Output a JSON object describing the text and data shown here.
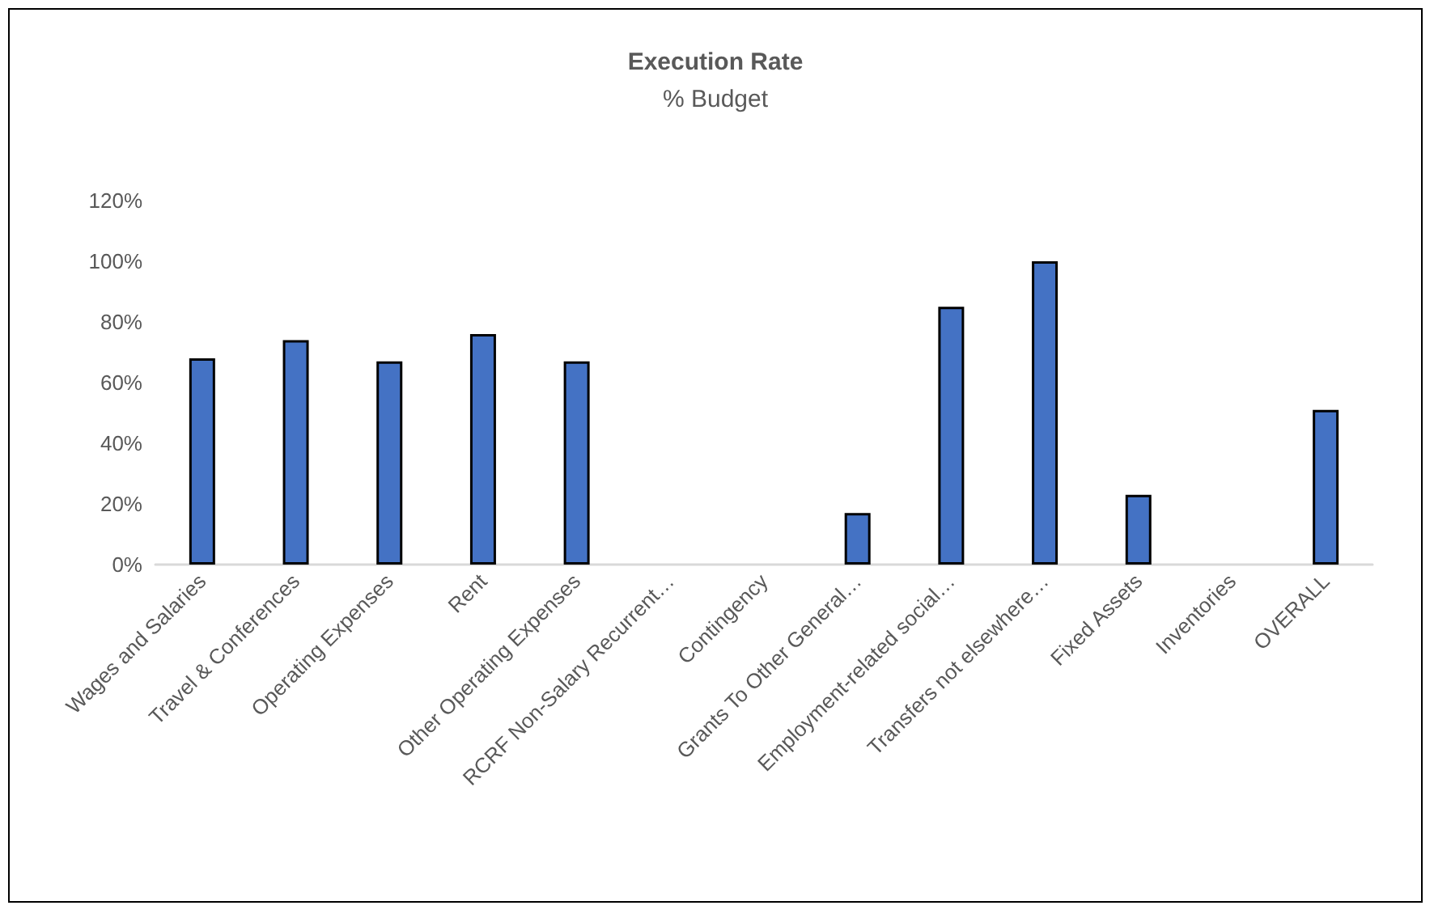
{
  "chart_data": {
    "type": "bar",
    "title": "Execution Rate",
    "subtitle": "% Budget",
    "categories": [
      "Wages and Salaries",
      "Travel & Conferences",
      "Operating Expenses",
      "Rent",
      "Other Operating Expenses",
      "RCRF Non-Salary Recurrent…",
      "Contingency",
      "Grants To Other General…",
      "Employment-related social…",
      "Transfers not elsewhere…",
      "Fixed Assets",
      "Inventories",
      "OVERALL"
    ],
    "values": [
      68,
      74,
      67,
      76,
      67,
      0,
      0,
      17,
      85,
      100,
      23,
      0,
      51
    ],
    "color": "#4472c4",
    "ylim": [
      0,
      120
    ],
    "yticks": [
      {
        "value": 0,
        "label": "0%"
      },
      {
        "value": 20,
        "label": "20%"
      },
      {
        "value": 40,
        "label": "40%"
      },
      {
        "value": 60,
        "label": "60%"
      },
      {
        "value": 80,
        "label": "80%"
      },
      {
        "value": 100,
        "label": "100%"
      },
      {
        "value": 120,
        "label": "120%"
      }
    ],
    "grid": false
  }
}
